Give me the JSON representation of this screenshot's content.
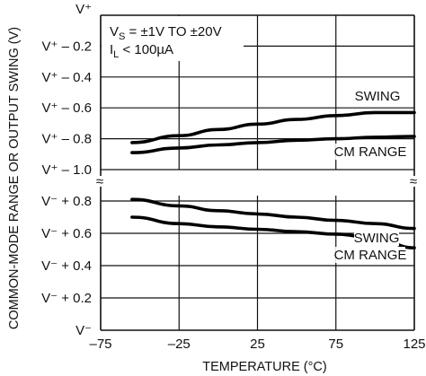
{
  "chart_data": {
    "type": "line",
    "xlabel": "TEMPERATURE (°C)",
    "ylabel": "COMMON-MODE RANGE OR OUTPUT SWING (V)",
    "x_ticks": [
      "–75",
      "–25",
      "25",
      "75",
      "125"
    ],
    "x_range": [
      -75,
      125
    ],
    "grid": true,
    "broken_axis": true,
    "upper_panel": {
      "reference": "V⁺",
      "y_ticks": [
        "V⁺",
        "V⁺ – 0.2",
        "V⁺ – 0.4",
        "V⁺ – 0.6",
        "V⁺ – 0.8",
        "V⁺ – 1.0"
      ],
      "y_tick_values": [
        0,
        -0.2,
        -0.4,
        -0.6,
        -0.8,
        -1.0
      ],
      "series": [
        {
          "name": "SWING",
          "x": [
            -55,
            -25,
            0,
            25,
            50,
            75,
            100,
            125
          ],
          "y": [
            -0.825,
            -0.78,
            -0.74,
            -0.705,
            -0.675,
            -0.65,
            -0.63,
            -0.63
          ]
        },
        {
          "name": "CM RANGE",
          "x": [
            -55,
            -25,
            0,
            25,
            50,
            75,
            100,
            125
          ],
          "y": [
            -0.89,
            -0.86,
            -0.84,
            -0.825,
            -0.81,
            -0.8,
            -0.79,
            -0.785
          ]
        }
      ]
    },
    "lower_panel": {
      "reference": "V⁻",
      "y_ticks": [
        "V⁻ + 0.8",
        "V⁻ + 0.6",
        "V⁻ + 0.4",
        "V⁻ + 0.2",
        "V⁻"
      ],
      "y_tick_values": [
        0.8,
        0.6,
        0.4,
        0.2,
        0
      ],
      "series": [
        {
          "name": "SWING",
          "x": [
            -55,
            -25,
            0,
            25,
            50,
            75,
            100,
            125
          ],
          "y": [
            0.81,
            0.77,
            0.74,
            0.72,
            0.7,
            0.68,
            0.66,
            0.63
          ]
        },
        {
          "name": "CM RANGE",
          "x": [
            -55,
            -25,
            0,
            25,
            50,
            75,
            100,
            125
          ],
          "y": [
            0.7,
            0.66,
            0.64,
            0.625,
            0.61,
            0.595,
            0.57,
            0.51
          ]
        }
      ]
    },
    "annotations": [
      "V<sub>S</sub> = ±1V TO ±20V",
      "I<sub>L</sub> < 100µA"
    ],
    "annotation_parts": {
      "vs_main": "V",
      "vs_sub": "S",
      "vs_rest": " = ±1V TO ±20V",
      "il_main": "I",
      "il_sub": "L",
      "il_rest": " < 100µA"
    },
    "break_symbol": "≈"
  }
}
